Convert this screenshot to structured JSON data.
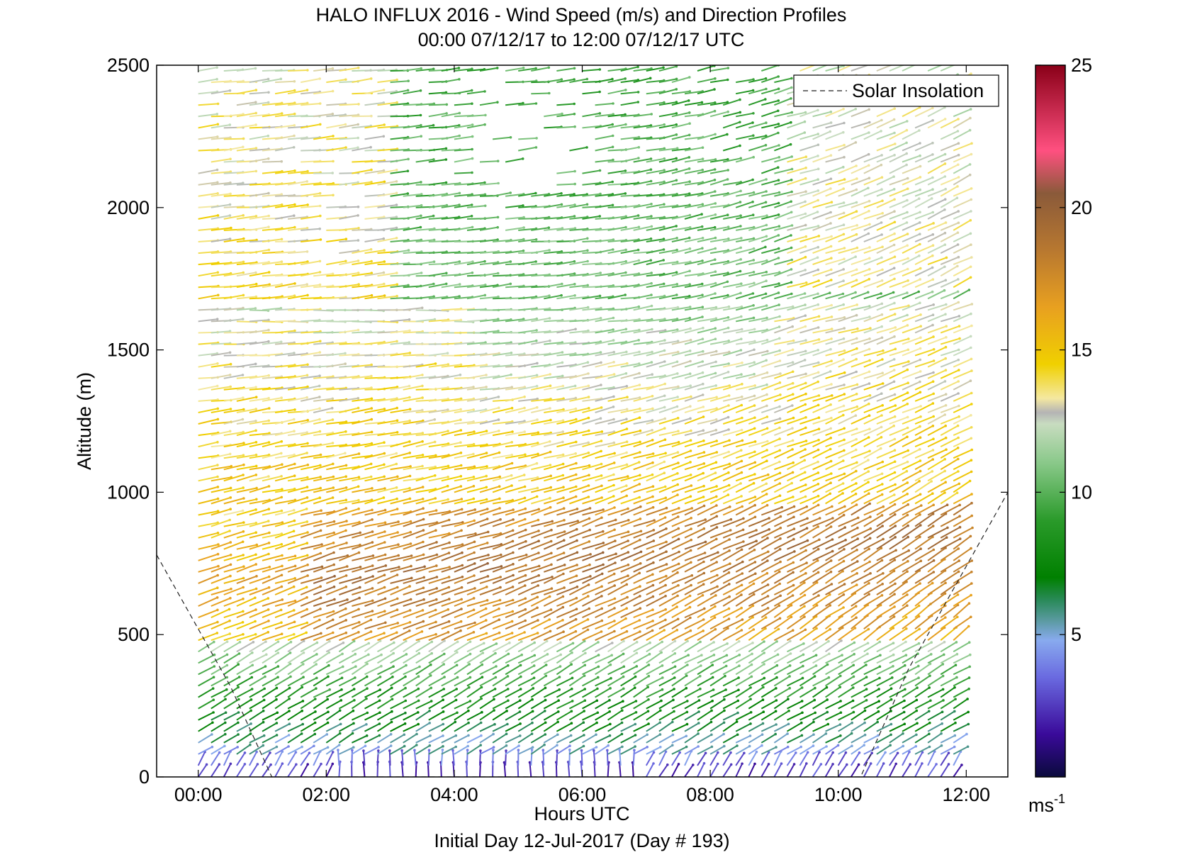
{
  "chart_data": {
    "type": "quiver",
    "title": "HALO INFLUX 2016 - Wind Speed (m/s) and Direction Profiles",
    "subtitle": "00:00 07/12/17 to 12:00 07/12/17  UTC",
    "xlabel": "Hours UTC",
    "ylabel": "Altitude (m)",
    "footer": "Initial Day 12-Jul-2017 (Day # 193)",
    "xlim": [
      -0.65,
      12.65
    ],
    "ylim": [
      0,
      2500
    ],
    "x_ticks": [
      0,
      2,
      4,
      6,
      8,
      10,
      12
    ],
    "x_tick_labels": [
      "00:00",
      "02:00",
      "04:00",
      "06:00",
      "08:00",
      "10:00",
      "12:00"
    ],
    "y_ticks": [
      0,
      500,
      1000,
      1500,
      2000,
      2500
    ],
    "y_tick_labels": [
      "0",
      "500",
      "1000",
      "1500",
      "2000",
      "2500"
    ],
    "legend": {
      "entry": "Solar Insolation",
      "position": "top-right"
    },
    "colorbar": {
      "range": [
        0,
        25
      ],
      "ticks": [
        5,
        10,
        15,
        20,
        25
      ],
      "tick_labels": [
        "5",
        "10",
        "15",
        "20",
        "25"
      ],
      "unit": "ms",
      "unit_exp": "-1",
      "stops": [
        {
          "v": 0,
          "c": "#0a0a3c"
        },
        {
          "v": 1.5,
          "c": "#3a0a9a"
        },
        {
          "v": 3.5,
          "c": "#6a6ae0"
        },
        {
          "v": 4.8,
          "c": "#88aaee"
        },
        {
          "v": 5.5,
          "c": "#5a9aa0"
        },
        {
          "v": 6.2,
          "c": "#2a8a5a"
        },
        {
          "v": 7,
          "c": "#008000"
        },
        {
          "v": 9,
          "c": "#2a9a2a"
        },
        {
          "v": 11,
          "c": "#88c888"
        },
        {
          "v": 12.4,
          "c": "#c8dcc0"
        },
        {
          "v": 12.8,
          "c": "#b4b4b4"
        },
        {
          "v": 13.3,
          "c": "#f4e8a0"
        },
        {
          "v": 14.5,
          "c": "#f0d000"
        },
        {
          "v": 16.5,
          "c": "#e8a020"
        },
        {
          "v": 18.5,
          "c": "#b87830"
        },
        {
          "v": 20.5,
          "c": "#8a5a3a"
        },
        {
          "v": 22,
          "c": "#ff5080"
        },
        {
          "v": 25,
          "c": "#8a0018"
        }
      ]
    },
    "solar_insolation_curve": {
      "x": [
        -0.65,
        0.5,
        1.15,
        10.35,
        11.1,
        12.65
      ],
      "y": [
        780,
        320,
        0,
        0,
        380,
        1000
      ]
    },
    "wind_vectors": {
      "time_hours": [
        0.0,
        0.2,
        0.4,
        0.6,
        0.8,
        1.0,
        1.2,
        1.4,
        1.6,
        1.8,
        2.0,
        2.2,
        2.4,
        2.6,
        2.8,
        3.0,
        3.2,
        3.4,
        3.6,
        3.8,
        4.0,
        4.2,
        4.4,
        4.6,
        4.8,
        5.0,
        5.2,
        5.4,
        5.6,
        5.8,
        6.0,
        6.2,
        6.4,
        6.6,
        6.8,
        7.0,
        7.2,
        7.4,
        7.6,
        7.8,
        8.0,
        8.2,
        8.4,
        8.6,
        8.8,
        9.0,
        9.2,
        9.4,
        9.6,
        9.8,
        10.0,
        10.2,
        10.4,
        10.6,
        10.8,
        11.0,
        11.2,
        11.4,
        11.6,
        11.8
      ],
      "altitude_step_m": 40,
      "layers": [
        {
          "z_max": 80,
          "speed": 3.5,
          "direction": "from southwest, veering"
        },
        {
          "z_max": 300,
          "speed": 8,
          "direction": "from southwest"
        },
        {
          "z_max": 450,
          "speed": 11,
          "direction": "from west-southwest"
        },
        {
          "z_max": 900,
          "speed": 18,
          "direction": "from west-southwest"
        },
        {
          "z_max": 1600,
          "speed": 14.5,
          "direction": "from west"
        },
        {
          "z_max": 2500,
          "speed": 10,
          "direction": "from west"
        }
      ]
    }
  }
}
